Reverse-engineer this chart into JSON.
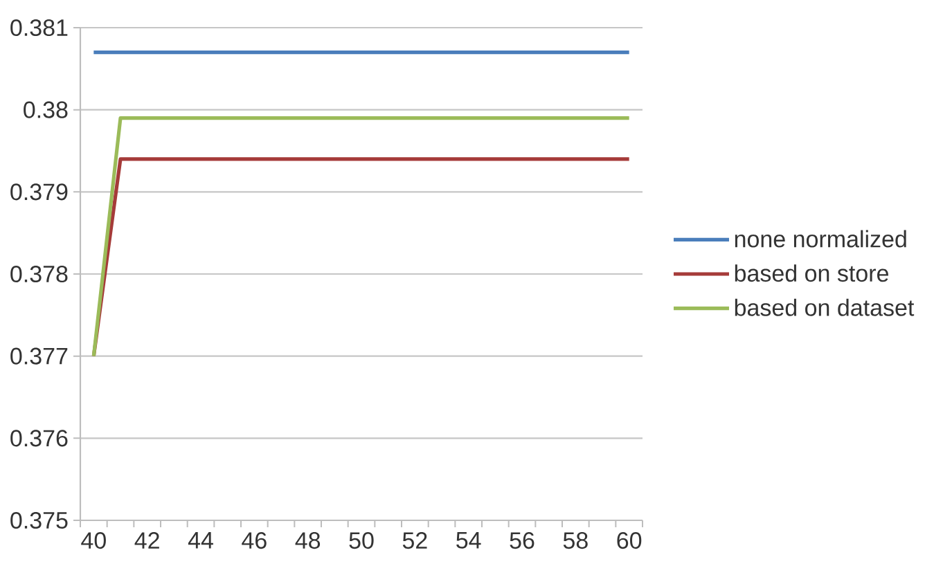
{
  "chart_data": {
    "type": "line",
    "categories": [
      "40",
      null,
      "42",
      null,
      "44",
      null,
      "46",
      null,
      "48",
      null,
      "50",
      null,
      "52",
      null,
      "54",
      null,
      "56",
      null,
      "58",
      null,
      "60"
    ],
    "series": [
      {
        "name": "none normalized",
        "color": "#4a7ebb",
        "values": [
          0.3807,
          0.3807,
          0.3807,
          0.3807,
          0.3807,
          0.3807,
          0.3807,
          0.3807,
          0.3807,
          0.3807,
          0.3807,
          0.3807,
          0.3807,
          0.3807,
          0.3807,
          0.3807,
          0.3807,
          0.3807,
          0.3807,
          0.3807,
          0.3807
        ]
      },
      {
        "name": "based on store",
        "color": "#a53b39",
        "values": [
          0.377,
          0.3794,
          0.3794,
          0.3794,
          0.3794,
          0.3794,
          0.3794,
          0.3794,
          0.3794,
          0.3794,
          0.3794,
          0.3794,
          0.3794,
          0.3794,
          0.3794,
          0.3794,
          0.3794,
          0.3794,
          0.3794,
          0.3794,
          0.3794
        ]
      },
      {
        "name": "based on dataset",
        "color": "#9bbb59",
        "values": [
          0.377,
          0.3799,
          0.3799,
          0.3799,
          0.3799,
          0.3799,
          0.3799,
          0.3799,
          0.3799,
          0.3799,
          0.3799,
          0.3799,
          0.3799,
          0.3799,
          0.3799,
          0.3799,
          0.3799,
          0.3799,
          0.3799,
          0.3799,
          0.3799
        ]
      }
    ],
    "ylim": [
      0.375,
      0.381
    ],
    "yticks": [
      0.375,
      0.376,
      0.377,
      0.378,
      0.379,
      0.38,
      0.381
    ],
    "grid": "y",
    "legend": "right"
  }
}
